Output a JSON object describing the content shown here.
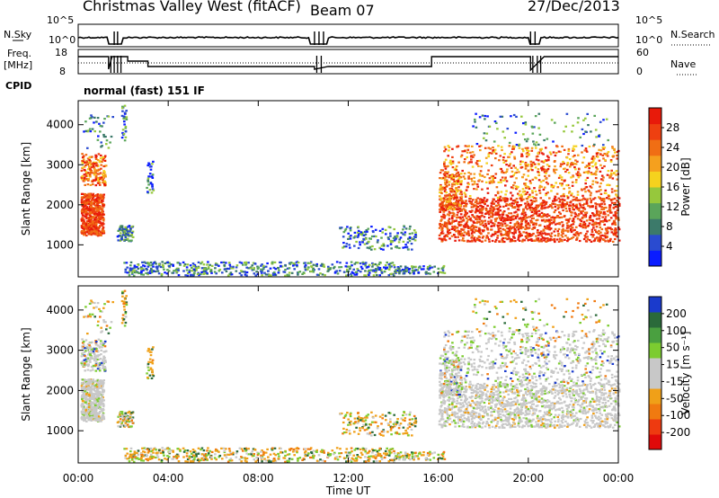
{
  "header": {
    "station": "Christmas Valley West (fitACF)",
    "beam": "Beam 07",
    "date": "27/Dec/2013"
  },
  "strip_labels": {
    "nsky": "N.Sky",
    "nsearch": "N.Search",
    "freq_line1": "Freq.",
    "freq_line2": "[MHz]",
    "nave": "Nave",
    "cpid": "CPID",
    "mode": "normal (fast) 151 IF",
    "nsky_ticks": [
      "10^5",
      "10^0"
    ],
    "nsearch_ticks": [
      "10^5",
      "10^0"
    ],
    "freq_ticks": [
      "18",
      "8"
    ],
    "nave_ticks": [
      "60",
      "0"
    ]
  },
  "colors": {
    "power_scale": [
      "#0a1cff",
      "#2a4bd0",
      "#3c7a6a",
      "#5aa55a",
      "#96c83c",
      "#f5d21e",
      "#f5a01e",
      "#f06e14",
      "#ee4010",
      "#e81a0a"
    ],
    "velocity_scale": [
      "#1a3acc",
      "#2a6a3a",
      "#4aa040",
      "#7ccc30",
      "#c8c8c8",
      "#c8c8c8",
      "#f0a018",
      "#f07a10",
      "#ee3a10",
      "#e00a0a"
    ]
  },
  "chart_data": [
    {
      "type": "heatmap",
      "panel": "power",
      "ylabel": "Slant Range [km]",
      "yticks": [
        1000,
        2000,
        3000,
        4000
      ],
      "ylim": [
        200,
        4600
      ],
      "colorbar_label": "Power [dB]",
      "colorbar_ticks": [
        4,
        8,
        12,
        16,
        20,
        24,
        28
      ],
      "colorbar_range": [
        0,
        32
      ]
    },
    {
      "type": "heatmap",
      "panel": "velocity",
      "ylabel": "Slant Range [km]",
      "yticks": [
        1000,
        2000,
        3000,
        4000
      ],
      "ylim": [
        200,
        4600
      ],
      "colorbar_label": "Velocity [m s⁻¹]",
      "colorbar_ticks": [
        200,
        100,
        50,
        15,
        -15,
        -50,
        -100,
        -200
      ],
      "colorbar_range": [
        -250,
        250
      ]
    }
  ],
  "xaxis": {
    "label": "Time UT",
    "ticks": [
      "00:00",
      "04:00",
      "08:00",
      "12:00",
      "16:00",
      "20:00",
      "00:00"
    ],
    "hours": [
      0,
      4,
      8,
      12,
      16,
      20,
      24
    ]
  }
}
